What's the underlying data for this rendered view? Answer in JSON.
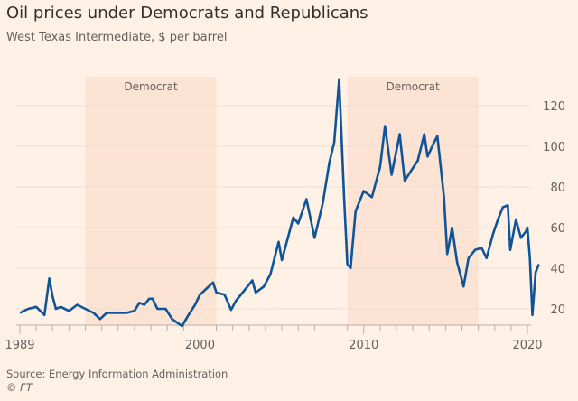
{
  "chart_data": {
    "type": "line",
    "title": "Oil prices under Democrats and Republicans",
    "subtitle": "West Texas Intermediate, $ per barrel",
    "xlabel": "",
    "ylabel": "",
    "xlim": [
      1989,
      2020.7
    ],
    "ylim": [
      12,
      135
    ],
    "x_ticks": [
      1989,
      2000,
      2010,
      2020
    ],
    "y_ticks": [
      20,
      40,
      60,
      80,
      100,
      120
    ],
    "y_axis_side": "right",
    "grid": "horizontal",
    "shaded_periods": [
      {
        "label": "Democrat",
        "start": 1993,
        "end": 2001
      },
      {
        "label": "Democrat",
        "start": 2009,
        "end": 2017
      }
    ],
    "series": [
      {
        "color": "#0f5499",
        "x": [
          1989.0,
          1989.5,
          1990.0,
          1990.5,
          1990.8,
          1991.0,
          1991.2,
          1991.5,
          1992.0,
          1992.5,
          1993.0,
          1993.5,
          1993.9,
          1994.3,
          1994.7,
          1995.0,
          1995.5,
          1996.0,
          1996.3,
          1996.6,
          1996.9,
          1997.1,
          1997.4,
          1997.9,
          1998.3,
          1998.9,
          1999.3,
          1999.7,
          2000.0,
          2000.4,
          2000.8,
          2001.0,
          2001.5,
          2001.9,
          2002.2,
          2002.6,
          2002.9,
          2003.2,
          2003.4,
          2003.9,
          2004.3,
          2004.8,
          2005.0,
          2005.7,
          2006.0,
          2006.5,
          2007.0,
          2007.5,
          2007.9,
          2008.2,
          2008.5,
          2008.8,
          2009.0,
          2009.2,
          2009.5,
          2010.0,
          2010.5,
          2011.0,
          2011.3,
          2011.7,
          2012.2,
          2012.5,
          2012.9,
          2013.3,
          2013.7,
          2013.9,
          2014.3,
          2014.5,
          2014.9,
          2015.1,
          2015.4,
          2015.7,
          2016.1,
          2016.4,
          2016.8,
          2017.2,
          2017.5,
          2017.9,
          2018.2,
          2018.5,
          2018.8,
          2018.95,
          2019.3,
          2019.6,
          2019.9,
          2020.0,
          2020.15,
          2020.3,
          2020.5,
          2020.7
        ],
        "y": [
          18,
          20,
          21,
          17,
          35,
          26,
          20,
          21,
          19,
          22,
          20,
          18,
          15,
          18,
          18,
          18,
          18,
          19,
          23,
          22,
          25,
          25,
          20,
          20,
          15,
          11.5,
          17,
          22,
          27,
          30,
          33,
          28,
          27,
          19.5,
          24,
          28,
          31,
          34,
          28,
          31,
          37,
          53,
          44,
          65,
          62,
          74,
          55,
          72,
          92,
          102,
          133,
          75,
          42,
          40,
          68,
          78,
          75,
          90,
          110,
          86,
          106,
          83,
          88,
          93,
          106,
          95,
          102,
          105,
          75,
          47,
          60,
          43,
          31,
          45,
          49,
          50,
          45,
          57,
          64,
          70,
          71,
          49,
          64,
          55,
          58,
          60,
          45,
          17,
          38,
          42
        ]
      }
    ]
  },
  "footer": {
    "source": "Source: Energy Information Administration",
    "copyright": "© FT"
  }
}
